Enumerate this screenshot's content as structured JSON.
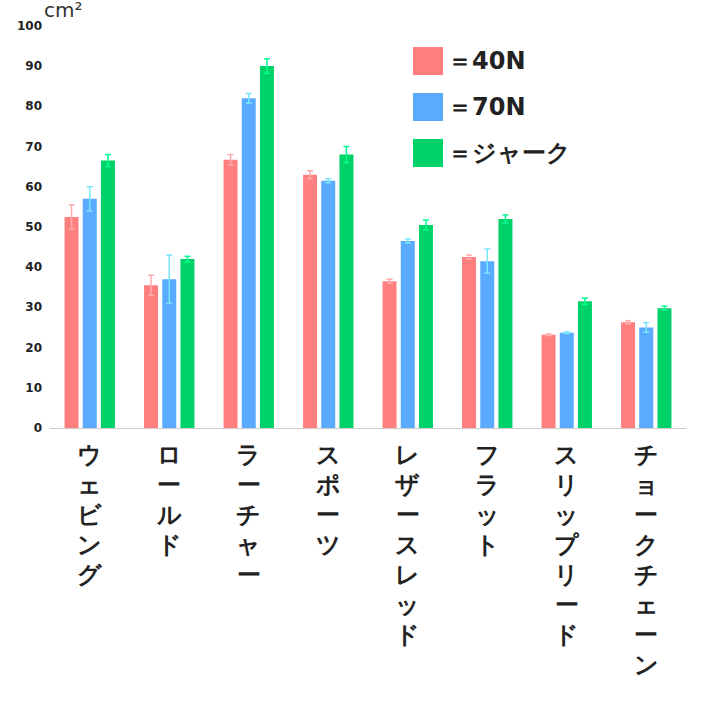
{
  "chart_data": {
    "type": "bar",
    "y_label": "cm²",
    "categories": [
      "ウェビング",
      "ロールド",
      "ラーチャー",
      "スポーツ",
      "レザースレッド",
      "フラット",
      "スリップリード",
      "チョークチェーン"
    ],
    "series": [
      {
        "name": "＝40N",
        "color": "#ff7f7f",
        "values": [
          52.5,
          35.5,
          66.7,
          63,
          36.5,
          42.5,
          23.2,
          26.3
        ],
        "errors": [
          3,
          2.5,
          1.3,
          1,
          0.5,
          0.5,
          0.2,
          0.4
        ]
      },
      {
        "name": "＝70N",
        "color": "#5aabff",
        "values": [
          57,
          37,
          82,
          61.5,
          46.5,
          41.5,
          23.7,
          25
        ],
        "errors": [
          3,
          6,
          1.2,
          0.5,
          0.5,
          3,
          0.2,
          1.2
        ]
      },
      {
        "name": "＝ジャーク",
        "color": "#00d26a",
        "values": [
          66.5,
          42,
          90,
          68,
          50.5,
          52,
          31.5,
          29.8
        ],
        "errors": [
          1.5,
          0.7,
          1.8,
          2,
          1.2,
          1,
          0.8,
          0.5
        ]
      }
    ],
    "ylim": [
      0,
      100
    ],
    "yticks": [
      0,
      10,
      20,
      30,
      40,
      50,
      60,
      70,
      80,
      90,
      100
    ],
    "grid": false,
    "legend": "top-right"
  }
}
